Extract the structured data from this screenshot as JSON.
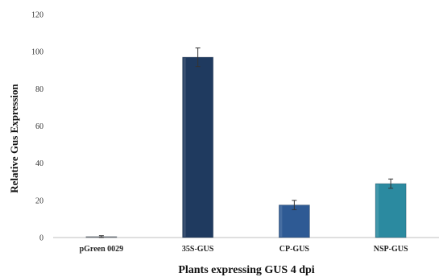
{
  "chart_data": {
    "type": "bar",
    "title": "",
    "xlabel": "Plants expressing GUS 4 dpi",
    "ylabel": "Relative Gus Expression",
    "ylim": [
      0,
      120
    ],
    "yticks": [
      "0",
      "20",
      "40",
      "60",
      "80",
      "100",
      "120"
    ],
    "grid": false,
    "legend": "none",
    "categories": [
      "pGreen 0029",
      "35S-GUS",
      "CP-GUS",
      "NSP-GUS"
    ],
    "values": [
      0.5,
      97,
      17.5,
      29
    ],
    "errors": [
      0.5,
      5,
      2.5,
      2.5
    ],
    "colors": [
      "#888888",
      "#1f3a5f",
      "#2e5a94",
      "#2b8aa0"
    ]
  }
}
